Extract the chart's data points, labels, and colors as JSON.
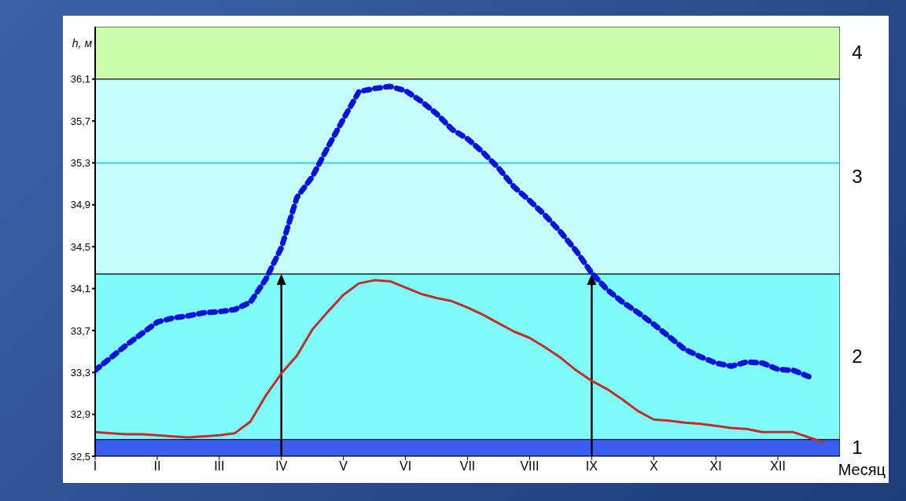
{
  "chart_data": {
    "type": "line",
    "ylabel": "h, м",
    "xlabel": "Месяц",
    "categories": [
      "I",
      null,
      null,
      null,
      "II",
      null,
      null,
      null,
      "III",
      null,
      null,
      null,
      "IV",
      null,
      null,
      null,
      "V",
      null,
      null,
      null,
      "VI",
      null,
      null,
      null,
      "VII",
      null,
      null,
      null,
      "VIII",
      null,
      null,
      null,
      "IX",
      null,
      null,
      null,
      "X",
      null,
      null,
      null,
      "XI",
      null,
      null,
      null,
      "XII",
      null,
      null,
      null
    ],
    "ylim": [
      32.5,
      36.6
    ],
    "yticks": [
      {
        "value": 32.5,
        "label": "32,5"
      },
      {
        "value": 32.9,
        "label": "32,9"
      },
      {
        "value": 33.3,
        "label": "33,3"
      },
      {
        "value": 33.7,
        "label": "33,7"
      },
      {
        "value": 34.1,
        "label": "34,1"
      },
      {
        "value": 34.5,
        "label": "34,5"
      },
      {
        "value": 34.9,
        "label": "34,9"
      },
      {
        "value": 35.3,
        "label": "35,3"
      },
      {
        "value": 35.7,
        "label": "35,7"
      },
      {
        "value": 36.1,
        "label": "36,1"
      }
    ],
    "grid": false,
    "legend": false,
    "marker": "none",
    "series": [
      {
        "color": "#0a14d8",
        "line_style": "dotted",
        "values": [
          33.32,
          33.44,
          33.56,
          33.67,
          33.78,
          33.82,
          33.84,
          33.87,
          33.88,
          33.9,
          33.97,
          34.19,
          34.49,
          34.97,
          35.17,
          35.45,
          35.72,
          35.98,
          36.01,
          36.03,
          35.99,
          35.89,
          35.77,
          35.62,
          35.53,
          35.4,
          35.25,
          35.07,
          34.94,
          34.8,
          34.64,
          34.46,
          34.25,
          34.09,
          33.97,
          33.87,
          33.76,
          33.64,
          33.52,
          33.45,
          33.39,
          33.36,
          33.4,
          33.39,
          33.33,
          33.32,
          33.26,
          null
        ]
      },
      {
        "color": "#c0302a",
        "line_style": "solid",
        "values": [
          32.73,
          32.72,
          32.71,
          32.71,
          32.7,
          32.69,
          32.68,
          32.69,
          32.7,
          32.72,
          32.83,
          33.08,
          33.29,
          33.46,
          33.71,
          33.88,
          34.04,
          34.15,
          34.18,
          34.17,
          34.11,
          34.05,
          34.01,
          33.98,
          33.92,
          33.85,
          33.77,
          33.69,
          33.63,
          33.54,
          33.44,
          33.32,
          33.22,
          33.14,
          33.04,
          32.93,
          32.85,
          32.84,
          32.82,
          32.81,
          32.79,
          32.77,
          32.76,
          32.73,
          32.73,
          32.73,
          32.68,
          32.63
        ]
      }
    ],
    "bands": [
      {
        "axis": "y",
        "from": 32.5,
        "to": 32.66,
        "label": "1",
        "color": "#3a5ef0"
      },
      {
        "axis": "y",
        "from": 32.66,
        "to": 34.24,
        "label": "2",
        "color": "#80fbfb"
      },
      {
        "axis": "y",
        "from": 34.24,
        "to": 36.1,
        "label": "3",
        "color": "#c6fefe"
      },
      {
        "axis": "y",
        "from": 36.1,
        "to": 36.6,
        "label": "4",
        "color": "#ccfdaa"
      }
    ],
    "ref_lines": [
      {
        "axis": "y",
        "value": 35.3,
        "color": "#33d6d6",
        "line_style": "solid"
      },
      {
        "axis": "x",
        "value": "IV",
        "color": "#000000",
        "line_style": "solid"
      },
      {
        "axis": "x",
        "value": "IX",
        "color": "#000000",
        "line_style": "solid"
      }
    ]
  }
}
